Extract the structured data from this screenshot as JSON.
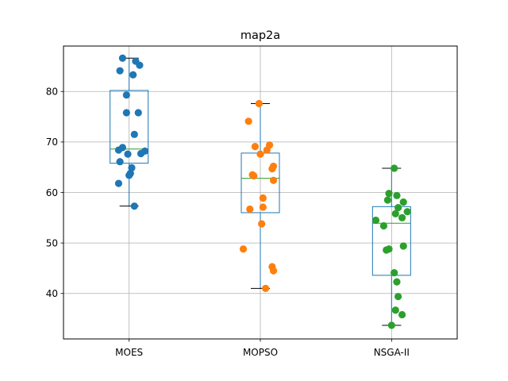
{
  "chart_data": {
    "type": "box+strip",
    "title": "map2a",
    "xlabel": "",
    "ylabel": "",
    "categories": [
      "MOES",
      "MOPSO",
      "NSGA-II"
    ],
    "ylim": [
      31,
      89
    ],
    "yticks": [
      40,
      50,
      60,
      70,
      80
    ],
    "grid": true,
    "boxes": [
      {
        "category": "MOES",
        "whisker_low": 57.3,
        "q1": 65.8,
        "median": 68.6,
        "q3": 80.2,
        "whisker_high": 86.6
      },
      {
        "category": "MOPSO",
        "whisker_low": 41.0,
        "q1": 56.0,
        "median": 62.8,
        "q3": 67.8,
        "whisker_high": 77.6
      },
      {
        "category": "NSGA-II",
        "whisker_low": 33.7,
        "q1": 43.6,
        "median": 53.9,
        "q3": 57.2,
        "whisker_high": 64.8
      }
    ],
    "series": [
      {
        "category": "MOES",
        "color": "#1f77b4",
        "points": [
          {
            "x": 0.95,
            "y": 86.6
          },
          {
            "x": 1.05,
            "y": 86.0
          },
          {
            "x": 1.08,
            "y": 85.2
          },
          {
            "x": 0.93,
            "y": 84.1
          },
          {
            "x": 1.03,
            "y": 83.3
          },
          {
            "x": 0.98,
            "y": 79.3
          },
          {
            "x": 0.98,
            "y": 75.8
          },
          {
            "x": 1.07,
            "y": 75.8
          },
          {
            "x": 1.04,
            "y": 71.5
          },
          {
            "x": 0.95,
            "y": 68.9
          },
          {
            "x": 0.92,
            "y": 68.4
          },
          {
            "x": 1.12,
            "y": 68.2
          },
          {
            "x": 1.09,
            "y": 67.7
          },
          {
            "x": 0.99,
            "y": 67.6
          },
          {
            "x": 0.93,
            "y": 66.1
          },
          {
            "x": 1.02,
            "y": 64.9
          },
          {
            "x": 1.01,
            "y": 63.8
          },
          {
            "x": 1.0,
            "y": 63.4
          },
          {
            "x": 0.92,
            "y": 61.8
          },
          {
            "x": 1.04,
            "y": 57.3
          }
        ]
      },
      {
        "category": "MOPSO",
        "color": "#ff7f0e",
        "points": [
          {
            "x": 1.99,
            "y": 77.6
          },
          {
            "x": 1.91,
            "y": 74.1
          },
          {
            "x": 2.07,
            "y": 69.4
          },
          {
            "x": 1.96,
            "y": 69.1
          },
          {
            "x": 2.05,
            "y": 68.4
          },
          {
            "x": 2.0,
            "y": 67.6
          },
          {
            "x": 2.1,
            "y": 65.2
          },
          {
            "x": 2.09,
            "y": 64.7
          },
          {
            "x": 1.94,
            "y": 63.5
          },
          {
            "x": 1.95,
            "y": 63.3
          },
          {
            "x": 2.1,
            "y": 62.4
          },
          {
            "x": 2.02,
            "y": 58.9
          },
          {
            "x": 2.02,
            "y": 57.1
          },
          {
            "x": 1.92,
            "y": 56.7
          },
          {
            "x": 2.01,
            "y": 53.8
          },
          {
            "x": 1.87,
            "y": 48.8
          },
          {
            "x": 2.09,
            "y": 45.3
          },
          {
            "x": 2.1,
            "y": 44.5
          },
          {
            "x": 2.04,
            "y": 41.0
          }
        ]
      },
      {
        "category": "NSGA-II",
        "color": "#2ca02c",
        "points": [
          {
            "x": 3.02,
            "y": 64.8
          },
          {
            "x": 2.98,
            "y": 59.8
          },
          {
            "x": 3.04,
            "y": 59.4
          },
          {
            "x": 2.97,
            "y": 58.5
          },
          {
            "x": 3.09,
            "y": 58.1
          },
          {
            "x": 3.05,
            "y": 57.0
          },
          {
            "x": 3.12,
            "y": 56.2
          },
          {
            "x": 3.03,
            "y": 55.8
          },
          {
            "x": 3.08,
            "y": 55.0
          },
          {
            "x": 2.88,
            "y": 54.5
          },
          {
            "x": 2.94,
            "y": 53.4
          },
          {
            "x": 3.09,
            "y": 49.4
          },
          {
            "x": 2.98,
            "y": 48.8
          },
          {
            "x": 2.96,
            "y": 48.6
          },
          {
            "x": 3.02,
            "y": 44.1
          },
          {
            "x": 3.04,
            "y": 42.3
          },
          {
            "x": 3.05,
            "y": 39.4
          },
          {
            "x": 3.03,
            "y": 36.7
          },
          {
            "x": 3.08,
            "y": 35.8
          },
          {
            "x": 3.0,
            "y": 33.7
          }
        ]
      }
    ],
    "colors": {
      "box": "#1f77b4",
      "median": "#2ca02c",
      "caps": "#000000",
      "grid": "#b0b0b0"
    }
  }
}
